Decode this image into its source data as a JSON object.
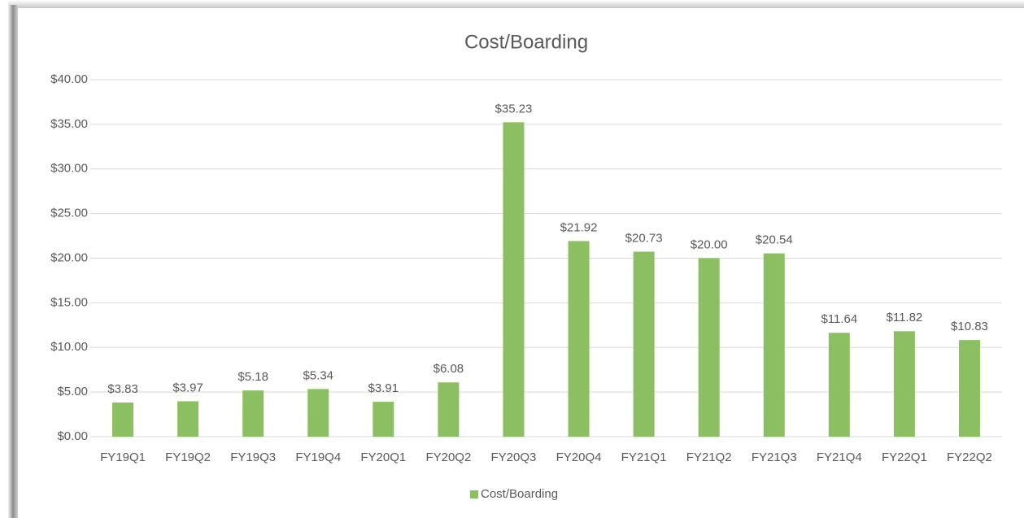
{
  "chart_data": {
    "type": "bar",
    "title": "Cost/Boarding",
    "categories": [
      "FY19Q1",
      "FY19Q2",
      "FY19Q3",
      "FY19Q4",
      "FY20Q1",
      "FY20Q2",
      "FY20Q3",
      "FY20Q4",
      "FY21Q1",
      "FY21Q2",
      "FY21Q3",
      "FY21Q4",
      "FY22Q1",
      "FY22Q2"
    ],
    "series": [
      {
        "name": "Cost/Boarding",
        "color": "#8cbf62",
        "values": [
          3.83,
          3.97,
          5.18,
          5.34,
          3.91,
          6.08,
          35.23,
          21.92,
          20.73,
          20.0,
          20.54,
          11.64,
          11.82,
          10.83
        ],
        "value_labels": [
          "$3.83",
          "$3.97",
          "$5.18",
          "$5.34",
          "$3.91",
          "$6.08",
          "$35.23",
          "$21.92",
          "$20.73",
          "$20.00",
          "$20.54",
          "$11.64",
          "$11.82",
          "$10.83"
        ]
      }
    ],
    "ylim": [
      0,
      40
    ],
    "yticks": [
      {
        "value": 0,
        "label": "$0.00"
      },
      {
        "value": 5,
        "label": "$5.00"
      },
      {
        "value": 10,
        "label": "$10.00"
      },
      {
        "value": 15,
        "label": "$15.00"
      },
      {
        "value": 20,
        "label": "$20.00"
      },
      {
        "value": 25,
        "label": "$25.00"
      },
      {
        "value": 30,
        "label": "$30.00"
      },
      {
        "value": 35,
        "label": "$35.00"
      },
      {
        "value": 40,
        "label": "$40.00"
      }
    ],
    "grid": true,
    "legend": "bottom"
  }
}
